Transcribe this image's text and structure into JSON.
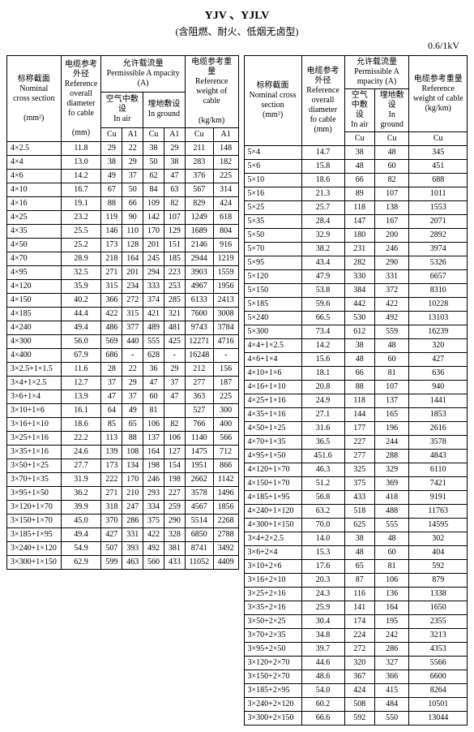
{
  "header": {
    "title": "YJV 、YJLV",
    "subtitle": "(含阻燃、耐火、低烟无卤型)",
    "voltage": "0.6/1kV"
  },
  "labels": {
    "nominal_cross_section_cn": "标称截面",
    "nominal_cross_section_en": "Nominal cross section",
    "unit_mm2": "(mm²)",
    "ref_diameter_cn": "电缆参考外径",
    "ref_diameter_en": "Reference overall diameter fo cable",
    "unit_mm": "(mm)",
    "permissible_cn": "允许载流量",
    "permissible_en": "Permissible A mpacity (A)",
    "in_air_cn": "空气中敷设",
    "in_air_en": "In air",
    "in_ground_cn": "埋地敷设",
    "in_ground_en": "In ground",
    "ref_weight_cn": "电缆参考重量",
    "ref_weight_en": "Reference weight of cable",
    "unit_kgkm": "(kg/km)",
    "cu": "Cu",
    "al": "A1"
  },
  "left_rows": [
    [
      "4×2.5",
      "11.8",
      "29",
      "22",
      "38",
      "29",
      "211",
      "148"
    ],
    [
      "4×4",
      "13.0",
      "38",
      "29",
      "50",
      "38",
      "283",
      "182"
    ],
    [
      "4×6",
      "14.2",
      "49",
      "37",
      "62",
      "47",
      "376",
      "225"
    ],
    [
      "4×10",
      "16.7",
      "67",
      "50",
      "84",
      "63",
      "567",
      "314"
    ],
    [
      "4×16",
      "19.1",
      "88",
      "66",
      "109",
      "82",
      "829",
      "424"
    ],
    [
      "4×25",
      "23.2",
      "119",
      "90",
      "142",
      "107",
      "1249",
      "618"
    ],
    [
      "4×35",
      "25.5",
      "146",
      "110",
      "170",
      "129",
      "1689",
      "804"
    ],
    [
      "4×50",
      "25.2",
      "173",
      "128",
      "201",
      "151",
      "2146",
      "916"
    ],
    [
      "4×70",
      "28.9",
      "218",
      "164",
      "245",
      "185",
      "2944",
      "1219"
    ],
    [
      "4×95",
      "32.5",
      "271",
      "201",
      "294",
      "223",
      "3903",
      "1559"
    ],
    [
      "4×120",
      "35.9",
      "315",
      "234",
      "333",
      "253",
      "4967",
      "1956"
    ],
    [
      "4×150",
      "40.2",
      "366",
      "272",
      "374",
      "285",
      "6133",
      "2413"
    ],
    [
      "4×185",
      "44.4",
      "422",
      "315",
      "421",
      "321",
      "7600",
      "3008"
    ],
    [
      "4×240",
      "49.4",
      "486",
      "377",
      "489",
      "481",
      "9743",
      "3784"
    ],
    [
      "4×300",
      "56.0",
      "569",
      "440",
      "555",
      "425",
      "12271",
      "4716"
    ],
    [
      "4×400",
      "67.9",
      "686",
      "-",
      "628",
      "-",
      "16248",
      "-"
    ],
    [
      "3×2.5+1×1.5",
      "11.6",
      "28",
      "22",
      "36",
      "29",
      "212",
      "156"
    ],
    [
      "3×4+1×2.5",
      "12.7",
      "37",
      "29",
      "47",
      "37",
      "277",
      "187"
    ],
    [
      "3×6+1×4",
      "13.9",
      "47",
      "37",
      "60",
      "47",
      "363",
      "225"
    ],
    [
      "3×10+1×6",
      "16.1",
      "64",
      "49",
      "81",
      "",
      "527",
      "300"
    ],
    [
      "3×16+1×10",
      "18.6",
      "85",
      "65",
      "106",
      "82",
      "766",
      "400"
    ],
    [
      "3×25+1×16",
      "22.2",
      "113",
      "88",
      "137",
      "106",
      "1140",
      "566"
    ],
    [
      "3×35+1×16",
      "24.6",
      "139",
      "108",
      "164",
      "127",
      "1475",
      "712"
    ],
    [
      "3×50+1×25",
      "27.7",
      "173",
      "134",
      "198",
      "154",
      "1951",
      "866"
    ],
    [
      "3×70+1×35",
      "31.9",
      "222",
      "170",
      "246",
      "198",
      "2662",
      "1142"
    ],
    [
      "3×95+1×50",
      "36.2",
      "271",
      "210",
      "293",
      "227",
      "3578",
      "1496"
    ],
    [
      "3×120+1×70",
      "39.9",
      "318",
      "247",
      "334",
      "259",
      "4567",
      "1856"
    ],
    [
      "3×150+1×70",
      "45.0",
      "370",
      "286",
      "375",
      "290",
      "5514",
      "2268"
    ],
    [
      "3×185+1×95",
      "49.4",
      "427",
      "331",
      "422",
      "328",
      "6850",
      "2788"
    ],
    [
      "3×240+1×120",
      "54.9",
      "507",
      "393",
      "492",
      "381",
      "8741",
      "3492"
    ],
    [
      "3×300+1×150",
      "62.9",
      "599",
      "463",
      "560",
      "433",
      "11052",
      "4409"
    ]
  ],
  "right_rows_a": [
    [
      "5×4",
      "14.7",
      "38",
      "48",
      "345"
    ],
    [
      "5×6",
      "15.8",
      "48",
      "60",
      "451"
    ],
    [
      "5×10",
      "18.6",
      "66",
      "82",
      "688"
    ],
    [
      "5×16",
      "21.3",
      "89",
      "107",
      "1011"
    ],
    [
      "5×25",
      "25.7",
      "118",
      "138",
      "1553"
    ],
    [
      "5×35",
      "28.4",
      "147",
      "167",
      "2071"
    ],
    [
      "5×50",
      "32.9",
      "180",
      "200",
      "2892"
    ],
    [
      "5×70",
      "38.2",
      "231",
      "246",
      "3974"
    ],
    [
      "5×95",
      "43.4",
      "282",
      "290",
      "5326"
    ],
    [
      "5×120",
      "47.9",
      "330",
      "331",
      "6657"
    ],
    [
      "5×150",
      "53.8",
      "384",
      "372",
      "8310"
    ],
    [
      "5×185",
      "59.6",
      "442",
      "422",
      "10228"
    ],
    [
      "5×240",
      "66.5",
      "530",
      "492",
      "13103"
    ],
    [
      "5×300",
      "73.4",
      "612",
      "559",
      "16239"
    ]
  ],
  "right_rows_b": [
    [
      "4×4+1×2.5",
      "14.2",
      "38",
      "48",
      "320"
    ],
    [
      "4×6+1×4",
      "15.6",
      "48",
      "60",
      "427"
    ],
    [
      "4×10+1×6",
      "18.1",
      "66",
      "81",
      "636"
    ],
    [
      "4×16+1×10",
      "20.8",
      "88",
      "107",
      "940"
    ],
    [
      "4×25+1×16",
      "24.9",
      "118",
      "137",
      "1441"
    ],
    [
      "4×35+1×16",
      "27.1",
      "144",
      "165",
      "1853"
    ],
    [
      "4×50+1×25",
      "31.6",
      "177",
      "196",
      "2616"
    ],
    [
      "4×70+1×35",
      "36.5",
      "227",
      "244",
      "3578"
    ],
    [
      "4×95+1×50",
      "451.6",
      "277",
      "288",
      "4843"
    ],
    [
      "4×120+1×70",
      "46.3",
      "325",
      "329",
      "6110"
    ],
    [
      "4×150+1×70",
      "51.2",
      "375",
      "369",
      "7421"
    ],
    [
      "4×185+1×95",
      "56.8",
      "433",
      "418",
      "9191"
    ],
    [
      "4×240+1×120",
      "63.2",
      "518",
      "488",
      "11763"
    ],
    [
      "4×300+1×150",
      "70.0",
      "625",
      "555",
      "14595"
    ]
  ],
  "right_rows_c": [
    [
      "3×4+2×2.5",
      "14.0",
      "38",
      "48",
      "302"
    ],
    [
      "3×6+2×4",
      "15.3",
      "48",
      "60",
      "404"
    ],
    [
      "3×10+2×6",
      "17.6",
      "65",
      "81",
      "592"
    ],
    [
      "3×16+2×10",
      "20.3",
      "87",
      "106",
      "879"
    ],
    [
      "3×25+2×16",
      "24.3",
      "116",
      "136",
      "1338"
    ],
    [
      "3×35+2×16",
      "25.9",
      "141",
      "164",
      "1650"
    ],
    [
      "3×50+2×25",
      "30.4",
      "174",
      "195",
      "2355"
    ],
    [
      "3×70+2×35",
      "34.8",
      "224",
      "242",
      "3213"
    ],
    [
      "3×95+2×50",
      "39.7",
      "272",
      "286",
      "4353"
    ],
    [
      "3×120+2×70",
      "44.6",
      "320",
      "327",
      "5566"
    ],
    [
      "3×150+2×70",
      "48.6",
      "367",
      "366",
      "6600"
    ],
    [
      "3×185+2×95",
      "54.0",
      "424",
      "415",
      "8264"
    ],
    [
      "3×240+2×120",
      "60.2",
      "508",
      "484",
      "10501"
    ],
    [
      "3×300+2×150",
      "66.6",
      "592",
      "550",
      "13044"
    ]
  ]
}
